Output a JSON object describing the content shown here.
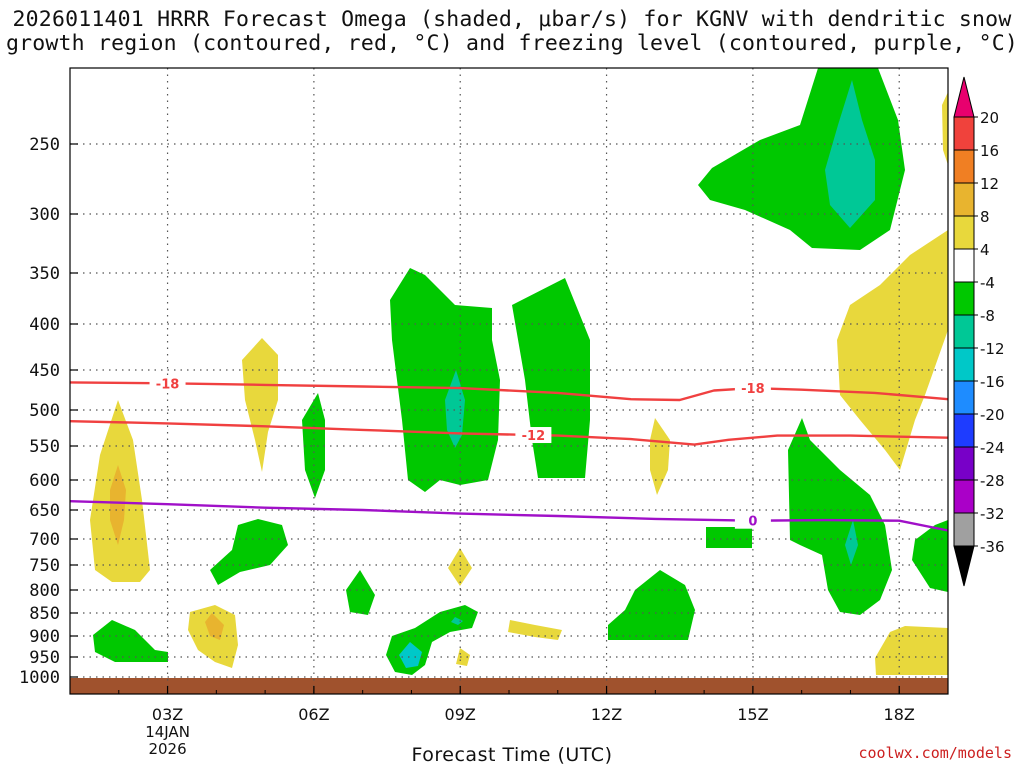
{
  "chart_data": {
    "type": "time-height cross section",
    "title_line1": "2026011401 HRRR Forecast Omega (shaded, μbar/s) for KGNV with dendritic snow",
    "title_line2": "growth region (contoured, red, °C) and freezing level (contoured, purple, °C)",
    "xlabel": "Forecast Time (UTC)",
    "credit": "coolwx.com/models",
    "x_range_hours": [
      1,
      19
    ],
    "x_ticks": [
      {
        "hour": 3,
        "label": "03Z",
        "sub1": "14JAN",
        "sub2": "2026"
      },
      {
        "hour": 6,
        "label": "06Z"
      },
      {
        "hour": 9,
        "label": "09Z"
      },
      {
        "hour": 12,
        "label": "12Z"
      },
      {
        "hour": 15,
        "label": "15Z"
      },
      {
        "hour": 18,
        "label": "18Z"
      }
    ],
    "y_ticks_hpa": [
      250,
      300,
      350,
      400,
      450,
      500,
      550,
      600,
      650,
      700,
      750,
      800,
      850,
      900,
      950,
      1000
    ],
    "colorbar": {
      "levels": [
        "20",
        "16",
        "12",
        "8",
        "4",
        "-4",
        "-8",
        "-12",
        "-16",
        "-20",
        "-24",
        "-28",
        "-32",
        "-36"
      ],
      "colors": [
        "#e8006e",
        "#f0423c",
        "#f07f23",
        "#e8b42f",
        "#e8d83c",
        "#ffffff",
        "#00c800",
        "#00c896",
        "#00c8c8",
        "#1e8cff",
        "#1e3cff",
        "#7800c8",
        "#aa00c8",
        "#a0a0a0",
        "#000000"
      ]
    },
    "contours": [
      {
        "name": "dgz-minus18",
        "label": "-18",
        "color": "#f04040",
        "points": [
          [
            1,
            465
          ],
          [
            3,
            466
          ],
          [
            5,
            468
          ],
          [
            7,
            470
          ],
          [
            9,
            472
          ],
          [
            11,
            478
          ],
          [
            12.5,
            486
          ],
          [
            13.5,
            487
          ],
          [
            14.2,
            475
          ],
          [
            15,
            472
          ],
          [
            16,
            474
          ],
          [
            17.5,
            478
          ],
          [
            19,
            486
          ]
        ]
      },
      {
        "name": "dgz-minus12",
        "label": "-12",
        "color": "#f04040",
        "points": [
          [
            1,
            515
          ],
          [
            3,
            518
          ],
          [
            5,
            522
          ],
          [
            7,
            527
          ],
          [
            9,
            532
          ],
          [
            11,
            535
          ],
          [
            12.5,
            540
          ],
          [
            13.8,
            548
          ],
          [
            14.5,
            541
          ],
          [
            15.5,
            535
          ],
          [
            17,
            535
          ],
          [
            19,
            538
          ]
        ]
      },
      {
        "name": "freezing-level",
        "label": "0",
        "color": "#a010c8",
        "points": [
          [
            1,
            635
          ],
          [
            3,
            640
          ],
          [
            5,
            646
          ],
          [
            7,
            650
          ],
          [
            9,
            656
          ],
          [
            11,
            660
          ],
          [
            13,
            665
          ],
          [
            15,
            668
          ],
          [
            16.5,
            667
          ],
          [
            18,
            668
          ],
          [
            19,
            685
          ]
        ]
      }
    ],
    "shaded_regions": [
      {
        "name": "green-upper-right",
        "value_range": "-4 to -8",
        "center_h": 16.8,
        "p_top": 220,
        "p_bot": 345
      },
      {
        "name": "teal-upper-right",
        "value_range": "-8 to -12",
        "center_h": 17,
        "p_top": 225,
        "p_bot": 320
      },
      {
        "name": "green-0830",
        "value_range": "-4 to -8",
        "center_h": 8.6,
        "p_top": 350,
        "p_bot": 615
      },
      {
        "name": "teal-0900",
        "value_range": "-8 to -12",
        "center_h": 8.9,
        "p_top": 450,
        "p_bot": 560
      },
      {
        "name": "green-1045",
        "value_range": "-4 to -8",
        "center_h": 10.7,
        "p_top": 360,
        "p_bot": 600
      },
      {
        "name": "yellow-right-mid",
        "value_range": "4 to 8",
        "center_h": 18.3,
        "p_top": 350,
        "p_bot": 600
      },
      {
        "name": "green-1630",
        "value_range": "-4 to -8",
        "center_h": 16.8,
        "p_top": 520,
        "p_bot": 850
      }
    ]
  }
}
